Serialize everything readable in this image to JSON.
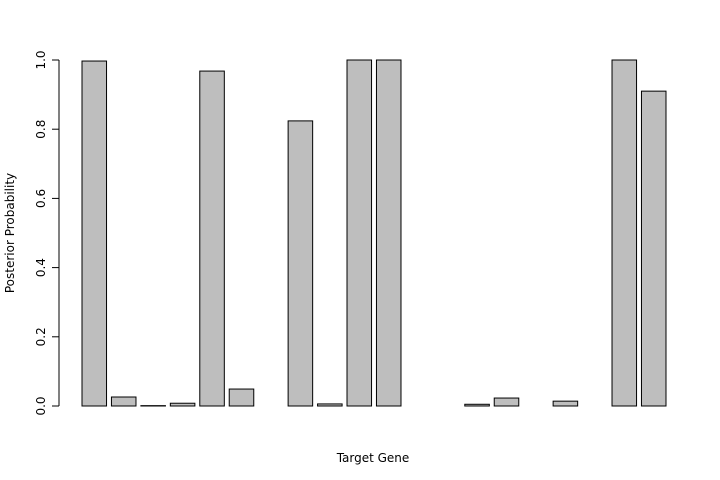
{
  "chart_data": {
    "type": "bar",
    "x_label": "Target Gene",
    "y_label": "Posterior Probability",
    "categories": [
      null,
      null,
      null,
      null,
      null,
      null,
      null,
      null,
      null,
      null,
      null,
      null,
      null,
      null,
      null,
      null,
      null,
      null,
      null,
      null
    ],
    "values": [
      0.997,
      0.026,
      0.001,
      0.008,
      0.968,
      0.049,
      0.0,
      0.824,
      0.006,
      1.0,
      1.0,
      0.0,
      0.0,
      0.005,
      0.023,
      0.0,
      0.014,
      0.0,
      1.0,
      0.91
    ],
    "color": "#bebebe",
    "ylim": [
      0,
      1
    ],
    "yticks": [
      {
        "value": 0,
        "label": "0.0"
      },
      0.2,
      0.4,
      0.6,
      0.8,
      {
        "value": 1,
        "label": "1.0"
      }
    ]
  }
}
